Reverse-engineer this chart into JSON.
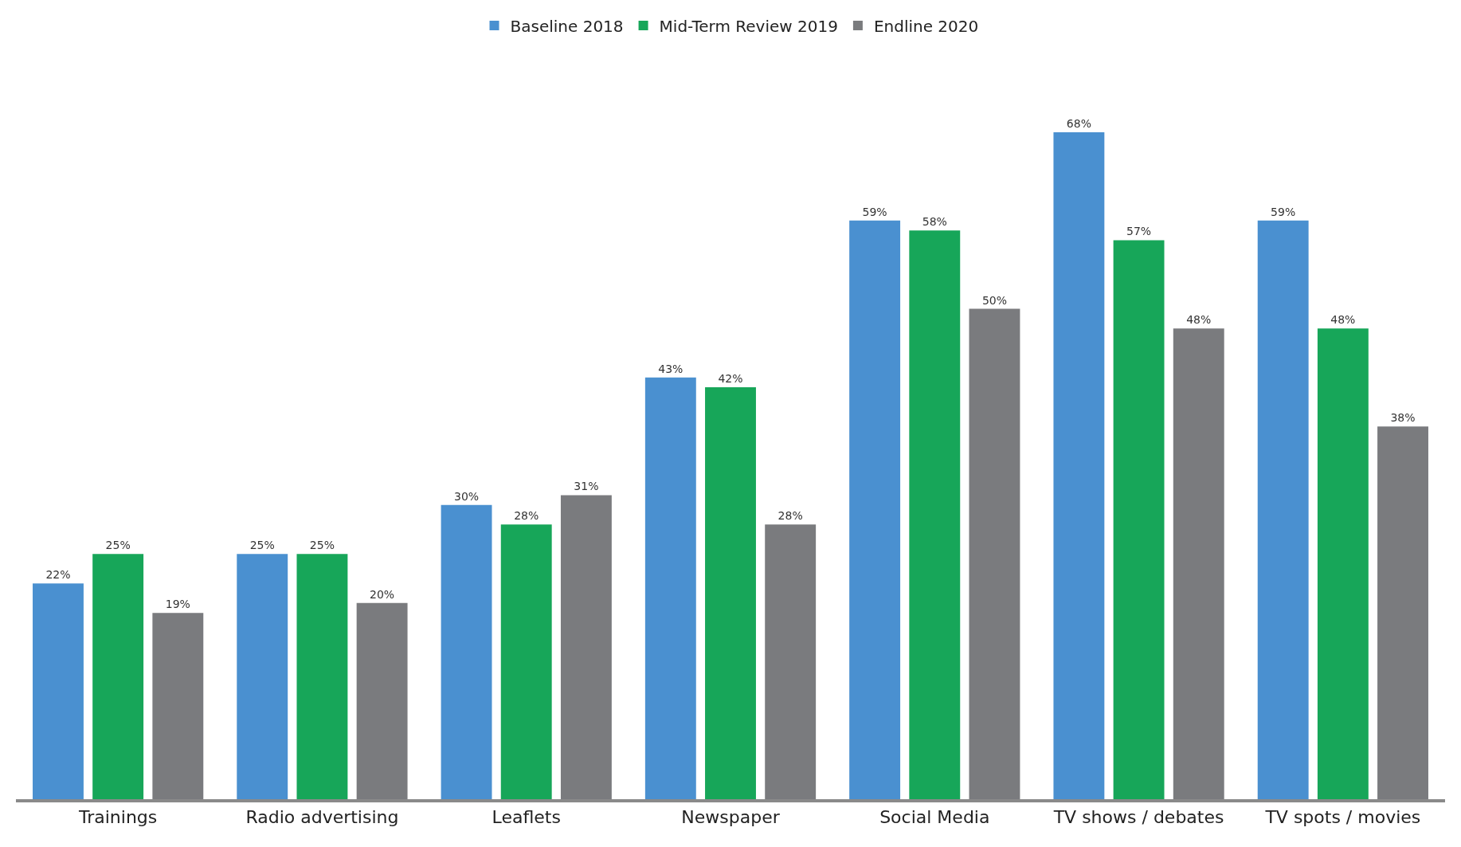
{
  "chart_data": {
    "type": "bar",
    "categories": [
      "Trainings",
      "Radio advertising",
      "Leaflets",
      "Newspaper",
      "Social Media",
      "TV shows / debates",
      "TV spots / movies"
    ],
    "series": [
      {
        "name": "Baseline 2018",
        "color": "#4a90d0",
        "values": [
          22,
          25,
          30,
          43,
          59,
          68,
          59
        ],
        "value_labels": [
          "22%",
          "25%",
          "30%",
          "43%",
          "59%",
          "68%",
          "59%"
        ]
      },
      {
        "name": "Mid-Term Review 2019",
        "color": "#17a659",
        "values": [
          25,
          25,
          28,
          42,
          58,
          57,
          48
        ],
        "value_labels": [
          "25%",
          "25%",
          "28%",
          "42%",
          "58%",
          "57%",
          "48%"
        ]
      },
      {
        "name": "Endline 2020",
        "color": "#7a7b7e",
        "values": [
          19,
          20,
          31,
          28,
          50,
          48,
          38
        ],
        "value_labels": [
          "19%",
          "20%",
          "31%",
          "28%",
          "50%",
          "48%",
          "38%"
        ]
      }
    ],
    "legend": "top"
  }
}
